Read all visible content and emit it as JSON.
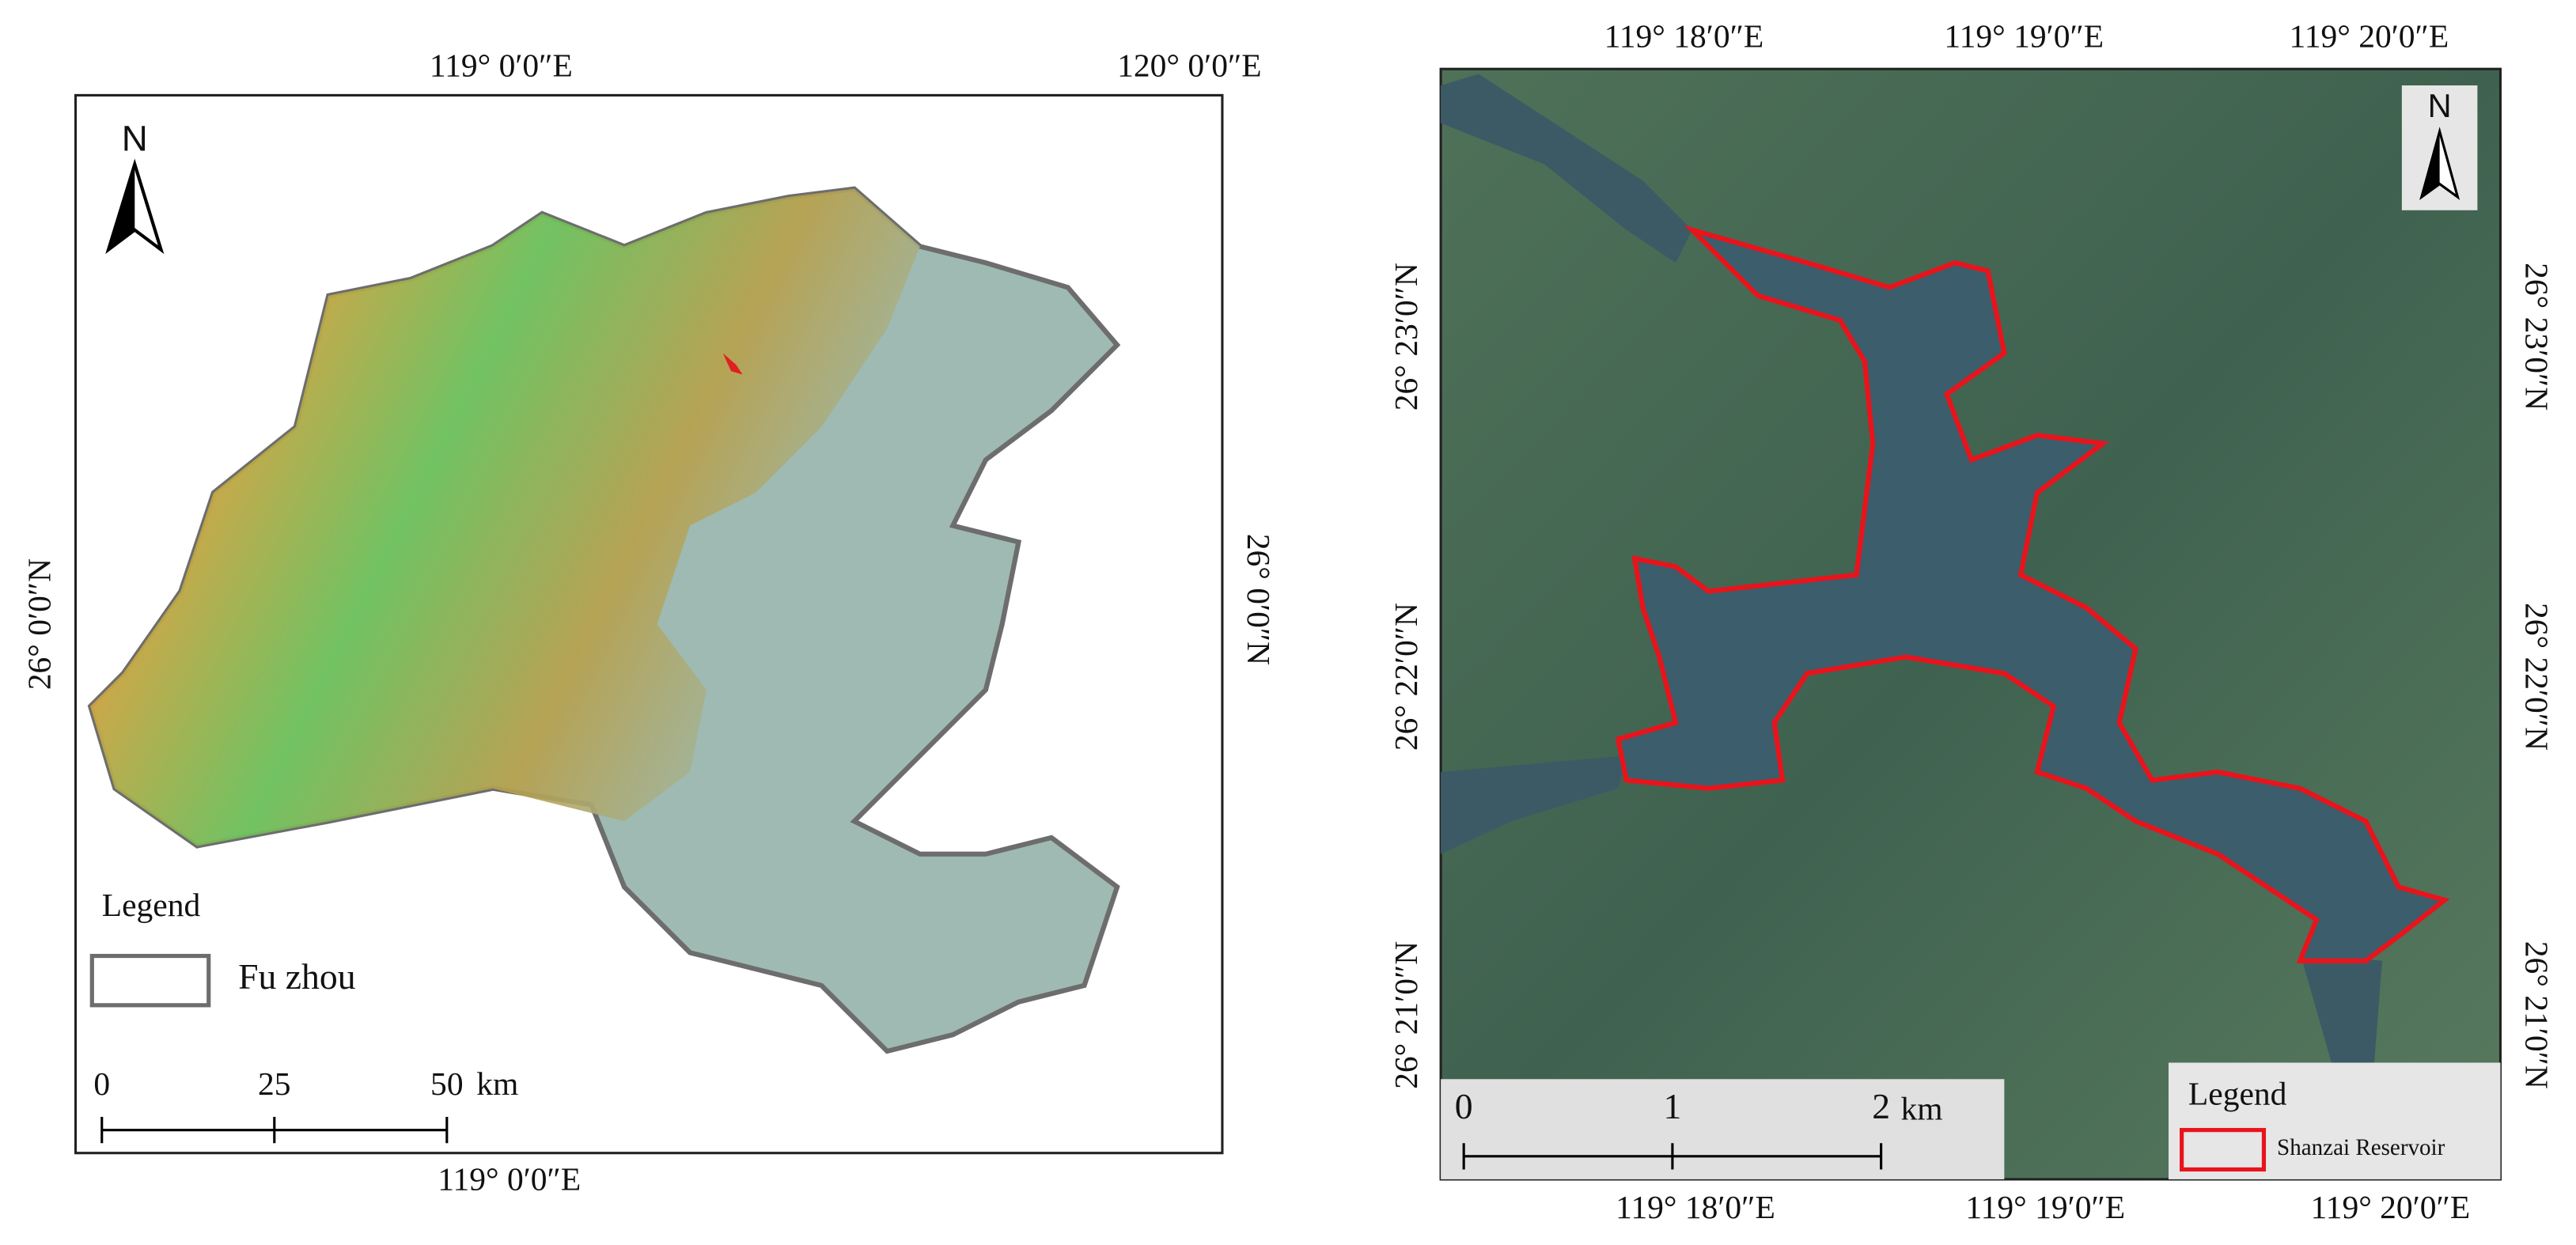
{
  "left_map": {
    "north": "N",
    "top_labels": [
      "119° 0′0″E",
      "120° 0′0″E"
    ],
    "bottom_labels": [
      "119° 0′0″E"
    ],
    "left_labels": [
      "26° 0′0″N"
    ],
    "right_labels": [
      "26° 0′0″N"
    ],
    "legend": {
      "title": "Legend",
      "items": [
        "Fu zhou"
      ]
    },
    "scale_bar": {
      "ticks": [
        "0",
        "25",
        "50"
      ],
      "unit": "km"
    }
  },
  "right_map": {
    "north": "N",
    "top_labels": [
      "119° 18′0″E",
      "119° 19′0″E",
      "119° 20′0″E"
    ],
    "bottom_labels": [
      "119° 18′0″E",
      "119° 19′0″E",
      "119° 20′0″E"
    ],
    "left_labels": [
      "26° 23′0″N",
      "26° 22′0″N",
      "26° 21′0″N"
    ],
    "right_labels": [
      "26° 23′0″N",
      "26° 22′0″N",
      "26° 21′0″N"
    ],
    "legend": {
      "title": "Legend",
      "items": [
        "Shanzai Reservoir"
      ]
    },
    "scale_bar": {
      "ticks": [
        "0",
        "1",
        "2"
      ],
      "unit": "km"
    }
  }
}
